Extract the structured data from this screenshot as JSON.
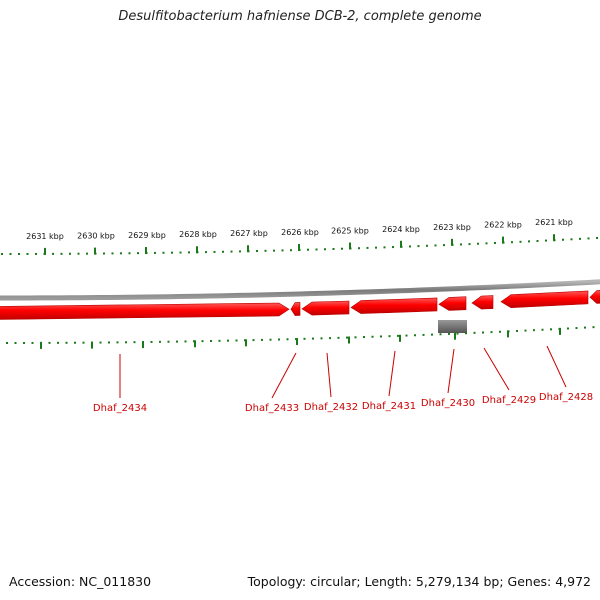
{
  "title": "Desulfitobacterium hafniense DCB-2, complete genome",
  "footer": {
    "accession": "Accession: NC_011830",
    "summary": "Topology: circular; Length: 5,279,134 bp; Genes: 4,972"
  },
  "colors": {
    "gene": "#ff0000",
    "gene_dark": "#b80000",
    "backbone": "#8a8a8a",
    "ticks": "#1a7a1a",
    "label": "#cc0000",
    "other_feature": "#7a7a7a"
  },
  "kbp_ticks": [
    "2631 kbp",
    "2630 kbp",
    "2629 kbp",
    "2628 kbp",
    "2627 kbp",
    "2626 kbp",
    "2625 kbp",
    "2624 kbp",
    "2623 kbp",
    "2622 kbp",
    "2621 kbp"
  ],
  "genes": [
    {
      "label": "Dhaf_2434",
      "strand": "forward"
    },
    {
      "label": "Dhaf_2433",
      "strand": "reverse"
    },
    {
      "label": "Dhaf_2432",
      "strand": "reverse"
    },
    {
      "label": "Dhaf_2431",
      "strand": "reverse"
    },
    {
      "label": "Dhaf_2430",
      "strand": "reverse"
    },
    {
      "label": "Dhaf_2429",
      "strand": "reverse"
    },
    {
      "label": "Dhaf_2428",
      "strand": "reverse"
    }
  ]
}
